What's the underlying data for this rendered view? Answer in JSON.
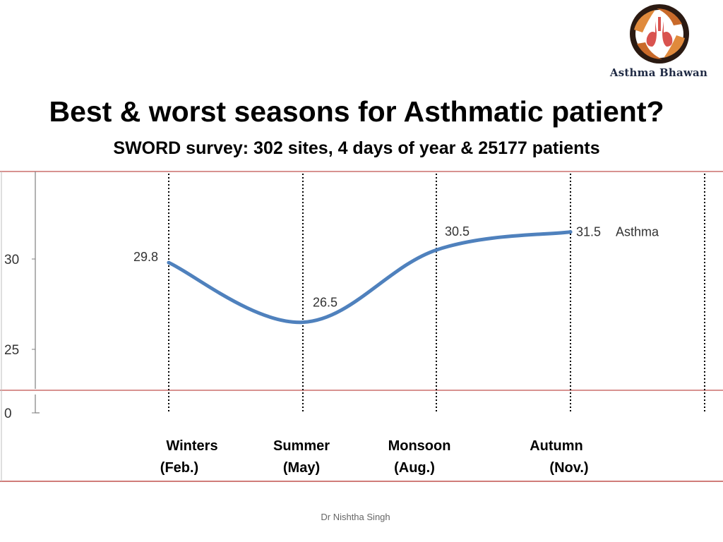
{
  "logo": {
    "caption": "Asthma Bhawan",
    "icon": "hands-around-lungs-icon"
  },
  "title": "Best & worst seasons for Asthmatic patient?",
  "subtitle": "SWORD survey: 302 sites, 4 days of year & 25177 patients",
  "footer": "Dr Nishtha Singh",
  "colors": {
    "series_line": "#4f81bd",
    "frame_line": "#c0504d",
    "axis": "#7f7f7f",
    "text": "#000000"
  },
  "chart_data": {
    "type": "line",
    "categories": [
      [
        "Winters",
        "(Feb.)"
      ],
      [
        "Summer",
        "(May)"
      ],
      [
        "Monsoon",
        "(Aug.)"
      ],
      [
        "Autumn",
        "(Nov.)"
      ]
    ],
    "series": [
      {
        "name": "Asthma",
        "values": [
          29.8,
          26.5,
          30.5,
          31.5
        ],
        "data_labels": [
          "29.8",
          "26.5",
          "30.5",
          "31.5"
        ]
      }
    ],
    "y_axis_break": true,
    "y_ticks": [
      "30",
      "25",
      "0"
    ],
    "y_tick_values": [
      30,
      25,
      0
    ],
    "ylim_upper_segment": [
      23.5,
      35
    ],
    "grid": "vertical dotted lines at each category",
    "legend": "label at end of line"
  }
}
